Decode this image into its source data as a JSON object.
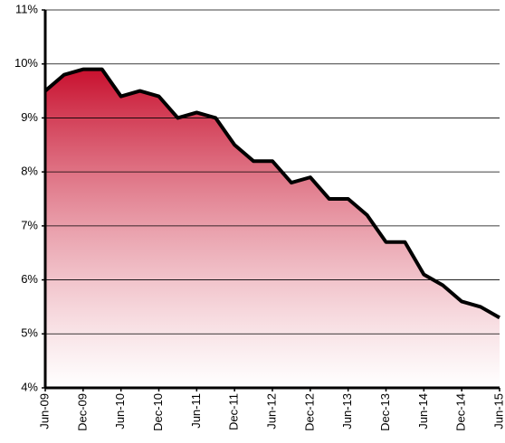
{
  "chart_data": {
    "type": "area",
    "categories": [
      "Jun-09",
      null,
      "Dec-09",
      null,
      "Jun-10",
      null,
      "Dec-10",
      null,
      "Jun-11",
      null,
      "Dec-11",
      null,
      "Jun-12",
      null,
      "Dec-12",
      null,
      "Jun-13",
      null,
      "Dec-13",
      null,
      "Jun-14",
      null,
      "Dec-14",
      null,
      "Jun-15"
    ],
    "values": [
      9.5,
      9.8,
      9.9,
      9.9,
      9.4,
      9.5,
      9.4,
      9.0,
      9.1,
      9.0,
      8.5,
      8.2,
      8.2,
      7.8,
      7.9,
      7.5,
      7.5,
      7.2,
      6.7,
      6.7,
      6.1,
      5.9,
      5.6,
      5.5,
      5.3
    ],
    "color": "#c8102e",
    "line_color": "#000000",
    "ylim": [
      4,
      11
    ],
    "yticks": [
      {
        "value": 4,
        "label": "4%"
      },
      {
        "value": 5,
        "label": "5%"
      },
      {
        "value": 6,
        "label": "6%"
      },
      {
        "value": 7,
        "label": "7%"
      },
      {
        "value": 8,
        "label": "8%"
      },
      {
        "value": 9,
        "label": "9%"
      },
      {
        "value": 10,
        "label": "10%"
      },
      {
        "value": 11,
        "label": "11%"
      }
    ],
    "grid": true
  }
}
